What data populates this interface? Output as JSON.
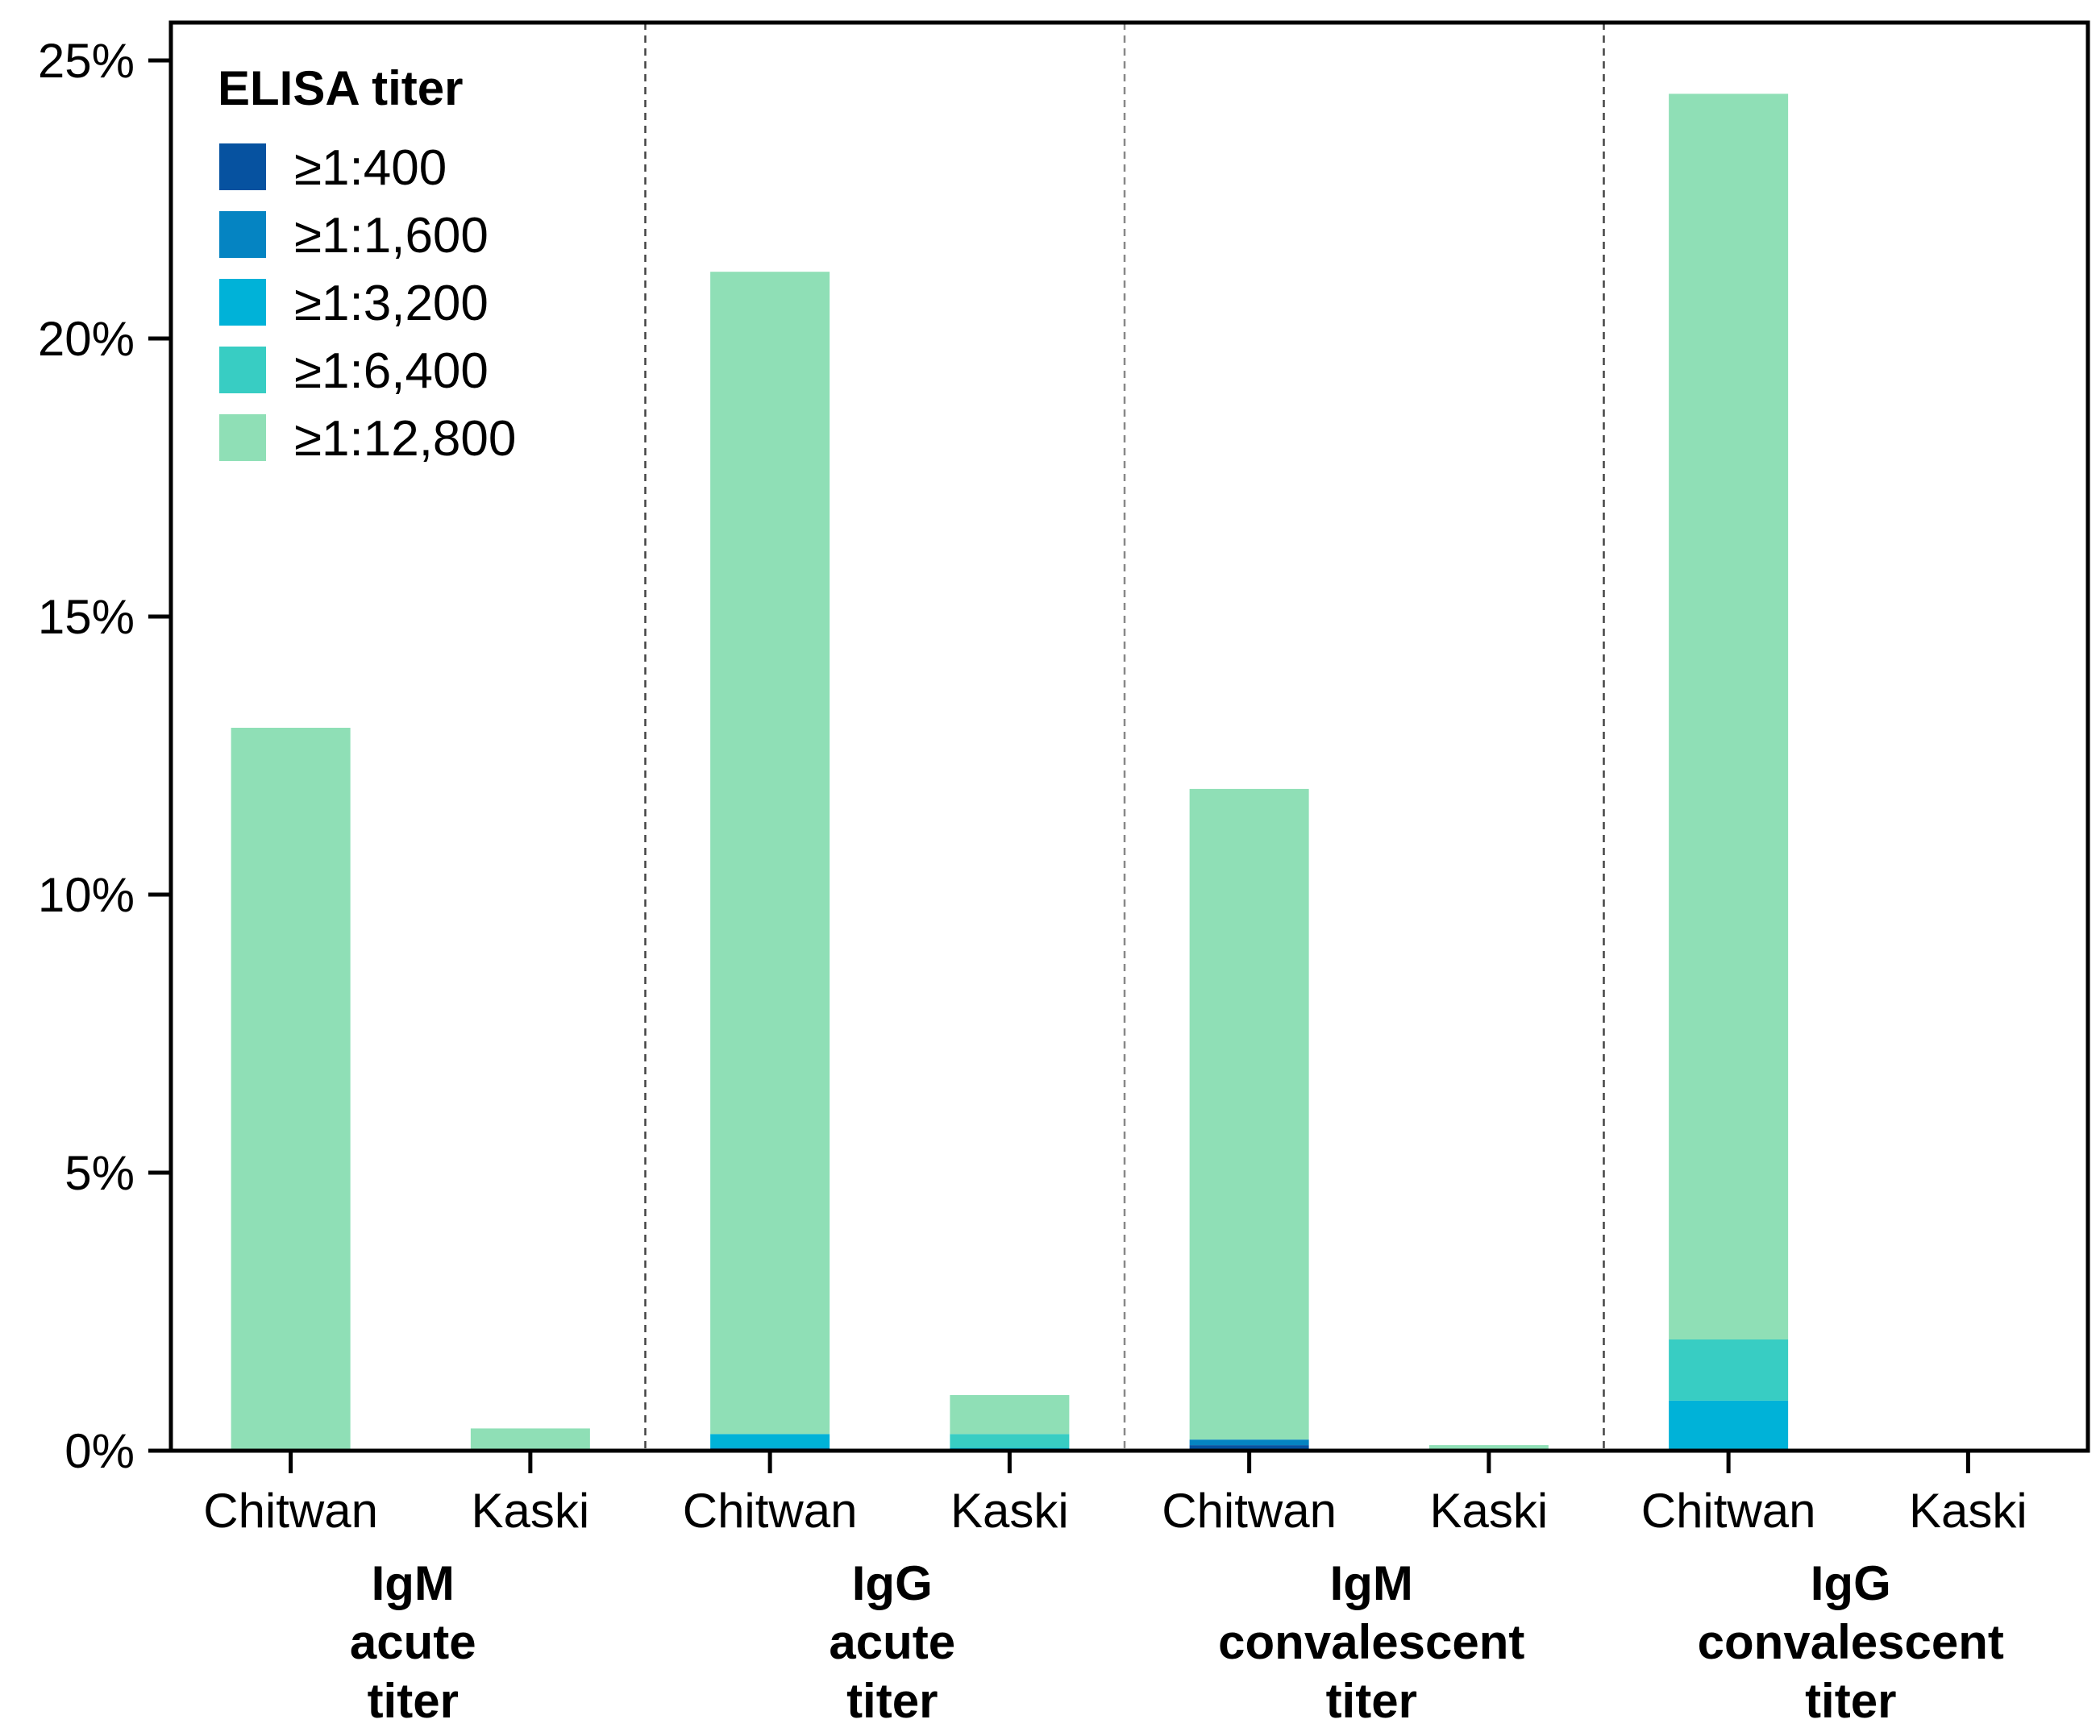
{
  "chart_data": {
    "type": "bar",
    "stacked": true,
    "ylim": [
      0,
      25
    ],
    "yticks": [
      0,
      5,
      10,
      15,
      20,
      25
    ],
    "ytick_labels": [
      "0%",
      "5%",
      "10%",
      "15%",
      "20%",
      "25%"
    ],
    "legend": {
      "title": "ELISA titer",
      "position": "top-left",
      "items": [
        {
          "label": "≥1:400",
          "color": "#0652a0"
        },
        {
          "label": "≥1:1,600",
          "color": "#0584c2"
        },
        {
          "label": "≥1:3,200",
          "color": "#00b2d8"
        },
        {
          "label": "≥1:6,400",
          "color": "#38cdc3"
        },
        {
          "label": "≥1:12,800",
          "color": "#8fdfb6"
        }
      ]
    },
    "groups": [
      {
        "label_lines": [
          "IgM",
          "acute",
          "titer"
        ],
        "bars": [
          {
            "category": "Chitwan",
            "segments": [
              0,
              0,
              0,
              0,
              13.0
            ]
          },
          {
            "category": "Kaski",
            "segments": [
              0,
              0,
              0,
              0,
              0.4
            ]
          }
        ]
      },
      {
        "label_lines": [
          "IgG",
          "acute",
          "titer"
        ],
        "bars": [
          {
            "category": "Chitwan",
            "segments": [
              0,
              0.05,
              0.25,
              0,
              20.9
            ]
          },
          {
            "category": "Kaski",
            "segments": [
              0,
              0,
              0.05,
              0.25,
              0.7
            ]
          }
        ]
      },
      {
        "label_lines": [
          "IgM",
          "convalescent",
          "titer"
        ],
        "bars": [
          {
            "category": "Chitwan",
            "segments": [
              0.1,
              0.1,
              0,
              0,
              11.7
            ]
          },
          {
            "category": "Kaski",
            "segments": [
              0,
              0,
              0,
              0,
              0.1
            ]
          }
        ]
      },
      {
        "label_lines": [
          "IgG",
          "convalescent",
          "titer"
        ],
        "bars": [
          {
            "category": "Chitwan",
            "segments": [
              0,
              0,
              0.9,
              1.1,
              22.4
            ]
          },
          {
            "category": "Kaski",
            "segments": [
              0,
              0,
              0,
              0,
              0
            ]
          }
        ]
      }
    ]
  }
}
